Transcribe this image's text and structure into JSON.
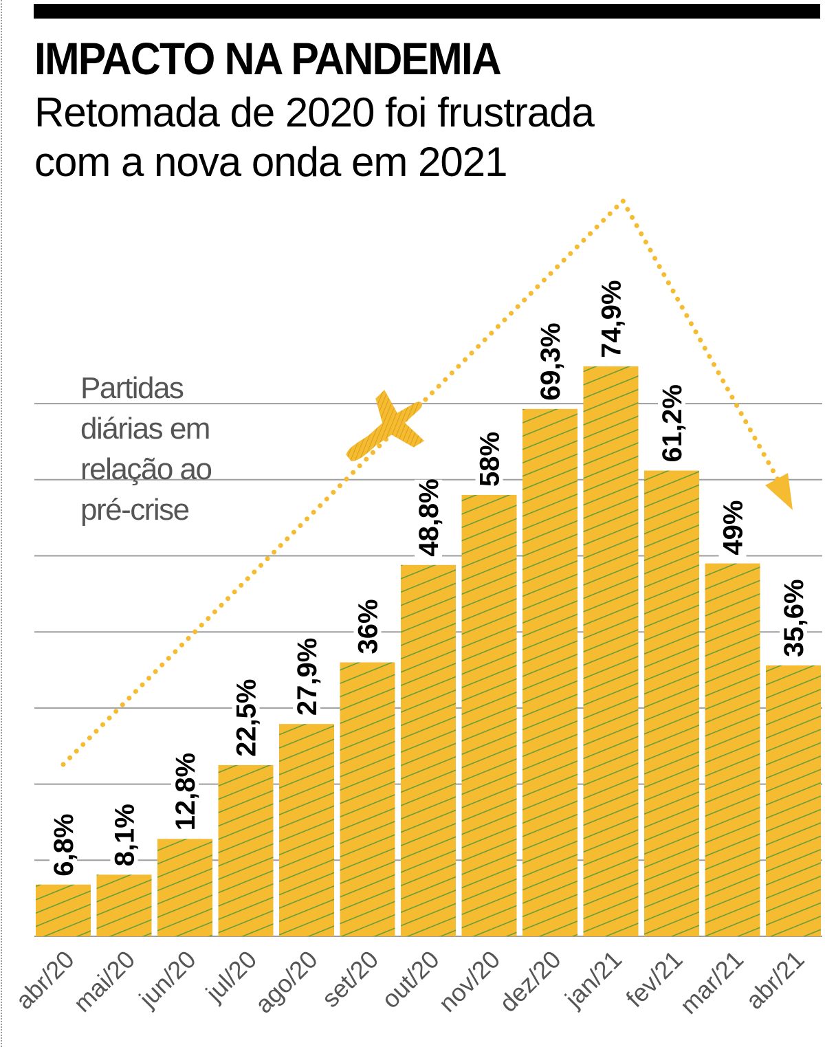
{
  "header": {
    "title": "IMPACTO NA PANDEMIA",
    "subtitle_line1": "Retomada de 2020 foi frustrada",
    "subtitle_line2": "com a nova onda em 2021"
  },
  "legend": {
    "line1": "Partidas",
    "line2": "diárias em",
    "line3": "relação ao",
    "line4": "pré-crise"
  },
  "icons": {
    "airplane": "airplane-icon",
    "trend_arrow": "dotted-arrow-icon"
  },
  "colors": {
    "bar_fill": "#F5BC31",
    "bar_hatch": "#5E9A3A",
    "gridline": "#9E9E9E",
    "trend": "#F5BC31",
    "label_text": "#000000",
    "axis_text": "#555555",
    "legend_text": "#555555"
  },
  "chart_data": {
    "type": "bar",
    "title": "IMPACTO NA PANDEMIA",
    "subtitle": "Retomada de 2020 foi frustrada com a nova onda em 2021",
    "xlabel": "",
    "ylabel": "Partidas diárias em relação ao pré-crise",
    "categories": [
      "abr/20",
      "mai/20",
      "jun/20",
      "jul/20",
      "ago/20",
      "set/20",
      "out/20",
      "nov/20",
      "dez/20",
      "jan/21",
      "fev/21",
      "mar/21",
      "abr/21"
    ],
    "values": [
      6.8,
      8.1,
      12.8,
      22.5,
      27.9,
      36,
      48.8,
      58,
      69.3,
      74.9,
      61.2,
      49,
      35.6
    ],
    "value_labels": [
      "6,8%",
      "8,1%",
      "12,8%",
      "22,5%",
      "27,9%",
      "36%",
      "48,8%",
      "58%",
      "69,3%",
      "74,9%",
      "61,2%",
      "49%",
      "35,6%"
    ],
    "unit": "%",
    "ylim": [
      0,
      80
    ],
    "gridlines": [
      10,
      20,
      30,
      40,
      50,
      60,
      70
    ],
    "grid": true,
    "annotations": [
      "Dotted arrow rising from abr/20 to a peak around jan/21 then falling toward abr/21",
      "Airplane icon on the rising trend line"
    ]
  }
}
